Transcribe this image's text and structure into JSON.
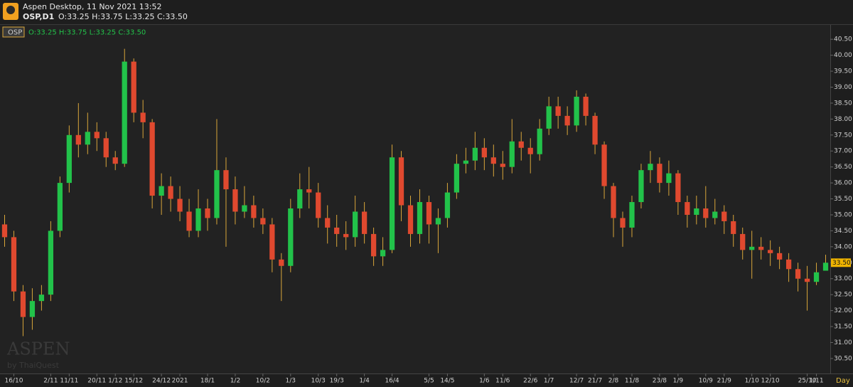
{
  "header": {
    "app": "Aspen Desktop, 11 Nov 2021 13:52",
    "symbol": "OSP,D1",
    "ohlc": "O:33.25 H:33.75 L:33.25 C:33.50"
  },
  "chart_data": {
    "type": "candlestick",
    "legend": {
      "symbol": "OSP",
      "ohlc": "O:33.25 H:33.75 L:33.25 C:33.50"
    },
    "watermark": "ASPEN",
    "watermark_sub": "by ThaiQuest",
    "x_unit_label": "Day",
    "price_tag": "33.50",
    "up_color": "#22c24a",
    "down_color": "#e0492f",
    "wick_color": "#d9a63a",
    "grid": false,
    "categories": [
      null,
      "16/10",
      null,
      null,
      null,
      "2/11",
      null,
      "11/11",
      null,
      null,
      "20/11",
      null,
      "1/12",
      null,
      "15/12",
      null,
      null,
      "24/12",
      null,
      "2021",
      null,
      null,
      "18/1",
      null,
      null,
      "1/2",
      null,
      null,
      "10/2",
      null,
      null,
      "1/3",
      null,
      null,
      "10/3",
      null,
      "19/3",
      null,
      null,
      "1/4",
      null,
      null,
      "16/4",
      null,
      null,
      null,
      "5/5",
      null,
      "14/5",
      null,
      null,
      null,
      "1/6",
      null,
      "11/6",
      null,
      null,
      "22/6",
      null,
      "1/7",
      null,
      null,
      "12/7",
      null,
      "21/7",
      null,
      "2/8",
      null,
      "11/8",
      null,
      null,
      "23/8",
      null,
      "1/9",
      null,
      null,
      "10/9",
      null,
      "21/9",
      null,
      null,
      "1/10",
      null,
      "12/10",
      null,
      null,
      null,
      "25/10",
      "1/11",
      null
    ],
    "open": [
      34.7,
      34.3,
      32.6,
      31.8,
      32.3,
      32.5,
      34.5,
      36.0,
      37.5,
      37.2,
      37.6,
      37.4,
      36.8,
      36.6,
      39.8,
      38.2,
      37.9,
      35.6,
      35.9,
      35.5,
      35.1,
      34.5,
      35.2,
      34.9,
      36.4,
      35.8,
      35.1,
      35.3,
      34.9,
      34.7,
      33.6,
      33.4,
      35.2,
      35.8,
      35.7,
      34.9,
      34.6,
      34.4,
      34.3,
      35.1,
      34.4,
      33.7,
      33.9,
      36.8,
      35.3,
      34.4,
      35.4,
      34.7,
      34.9,
      35.7,
      36.6,
      36.7,
      37.1,
      36.8,
      36.6,
      36.5,
      37.3,
      37.1,
      36.9,
      37.7,
      38.4,
      38.1,
      37.8,
      38.7,
      38.1,
      37.2,
      35.9,
      34.9,
      34.6,
      35.4,
      36.4,
      36.6,
      36.0,
      36.3,
      35.4,
      35.0,
      35.2,
      34.9,
      35.1,
      34.8,
      34.4,
      33.9,
      34.0,
      33.9,
      33.8,
      33.6,
      33.3,
      33.0,
      32.9,
      33.25
    ],
    "high": [
      35.0,
      34.5,
      32.8,
      32.7,
      32.8,
      34.8,
      36.2,
      37.8,
      38.5,
      38.2,
      37.9,
      37.6,
      37.0,
      40.2,
      39.9,
      38.6,
      38.0,
      36.3,
      36.2,
      35.9,
      35.5,
      35.8,
      35.5,
      38.0,
      36.8,
      36.2,
      35.9,
      35.6,
      35.2,
      34.9,
      33.8,
      35.5,
      36.3,
      36.5,
      36.0,
      35.3,
      35.0,
      34.8,
      35.6,
      35.4,
      34.6,
      34.3,
      37.2,
      37.0,
      35.6,
      35.8,
      35.6,
      35.2,
      36.0,
      36.9,
      37.1,
      37.6,
      37.4,
      37.2,
      37.0,
      38.0,
      37.6,
      37.4,
      38.0,
      38.7,
      38.7,
      38.4,
      38.9,
      38.8,
      38.2,
      37.3,
      36.0,
      35.1,
      35.6,
      36.6,
      37.0,
      36.8,
      36.7,
      36.4,
      35.6,
      35.6,
      35.9,
      35.5,
      35.3,
      35.0,
      34.6,
      34.5,
      34.3,
      34.2,
      34.0,
      33.8,
      33.5,
      33.4,
      33.5,
      33.75
    ],
    "low": [
      34.0,
      32.3,
      31.2,
      31.4,
      32.0,
      32.3,
      34.3,
      35.7,
      36.8,
      36.9,
      37.0,
      36.5,
      36.4,
      36.5,
      37.9,
      37.4,
      35.2,
      35.0,
      35.1,
      34.8,
      34.3,
      34.3,
      34.5,
      34.7,
      34.0,
      34.7,
      34.9,
      34.6,
      34.4,
      33.2,
      32.3,
      33.2,
      34.9,
      35.2,
      34.6,
      34.1,
      34.0,
      33.9,
      34.0,
      34.1,
      33.4,
      33.4,
      33.8,
      34.8,
      34.0,
      34.1,
      34.1,
      33.8,
      34.6,
      35.5,
      36.3,
      36.4,
      36.4,
      36.2,
      36.1,
      36.3,
      36.7,
      36.3,
      36.7,
      37.5,
      37.7,
      37.5,
      37.6,
      37.8,
      36.9,
      35.5,
      34.3,
      34.0,
      34.3,
      35.2,
      36.0,
      35.7,
      35.6,
      35.0,
      34.6,
      34.7,
      34.6,
      34.7,
      34.4,
      34.0,
      33.6,
      33.0,
      33.6,
      33.4,
      33.3,
      32.9,
      32.6,
      32.0,
      32.8,
      33.25
    ],
    "close": [
      34.3,
      32.6,
      31.8,
      32.3,
      32.5,
      34.5,
      36.0,
      37.5,
      37.2,
      37.6,
      37.4,
      36.8,
      36.6,
      39.8,
      38.2,
      37.9,
      35.6,
      35.9,
      35.5,
      35.1,
      34.5,
      35.2,
      34.9,
      36.4,
      35.8,
      35.1,
      35.3,
      34.9,
      34.7,
      33.6,
      33.4,
      35.2,
      35.8,
      35.7,
      34.9,
      34.6,
      34.4,
      34.3,
      35.1,
      34.4,
      33.7,
      33.9,
      36.8,
      35.3,
      34.4,
      35.4,
      34.7,
      34.9,
      35.7,
      36.6,
      36.7,
      37.1,
      36.8,
      36.6,
      36.5,
      37.3,
      37.1,
      36.9,
      37.7,
      38.4,
      38.1,
      37.8,
      38.7,
      38.1,
      37.2,
      35.9,
      34.9,
      34.6,
      35.4,
      36.4,
      36.6,
      36.0,
      36.3,
      35.4,
      35.0,
      35.2,
      34.9,
      35.1,
      34.8,
      34.4,
      33.9,
      34.0,
      33.9,
      33.8,
      33.6,
      33.3,
      33.0,
      32.9,
      33.2,
      33.5
    ],
    "ylim": [
      30.03,
      40.95
    ],
    "yticks": [
      {
        "value": 30.5,
        "label": "30.50"
      },
      {
        "value": 31,
        "label": "31.00"
      },
      {
        "value": 31.5,
        "label": "31.50"
      },
      {
        "value": 32,
        "label": "32.00"
      },
      {
        "value": 32.5,
        "label": "32.50"
      },
      {
        "value": 33,
        "label": "33.00"
      },
      {
        "value": 33.5,
        "label": "33.50"
      },
      {
        "value": 34,
        "label": "34.00"
      },
      {
        "value": 34.5,
        "label": "34.50"
      },
      {
        "value": 35,
        "label": "35.00"
      },
      {
        "value": 35.5,
        "label": "35.50"
      },
      {
        "value": 36,
        "label": "36.00"
      },
      {
        "value": 36.5,
        "label": "36.50"
      },
      {
        "value": 37,
        "label": "37.00"
      },
      {
        "value": 37.5,
        "label": "37.50"
      },
      {
        "value": 38,
        "label": "38.00"
      },
      {
        "value": 38.5,
        "label": "38.50"
      },
      {
        "value": 39,
        "label": "39.00"
      },
      {
        "value": 39.5,
        "label": "39.50"
      },
      {
        "value": 40,
        "label": "40.00"
      },
      {
        "value": 40.5,
        "label": "40.50"
      }
    ]
  }
}
